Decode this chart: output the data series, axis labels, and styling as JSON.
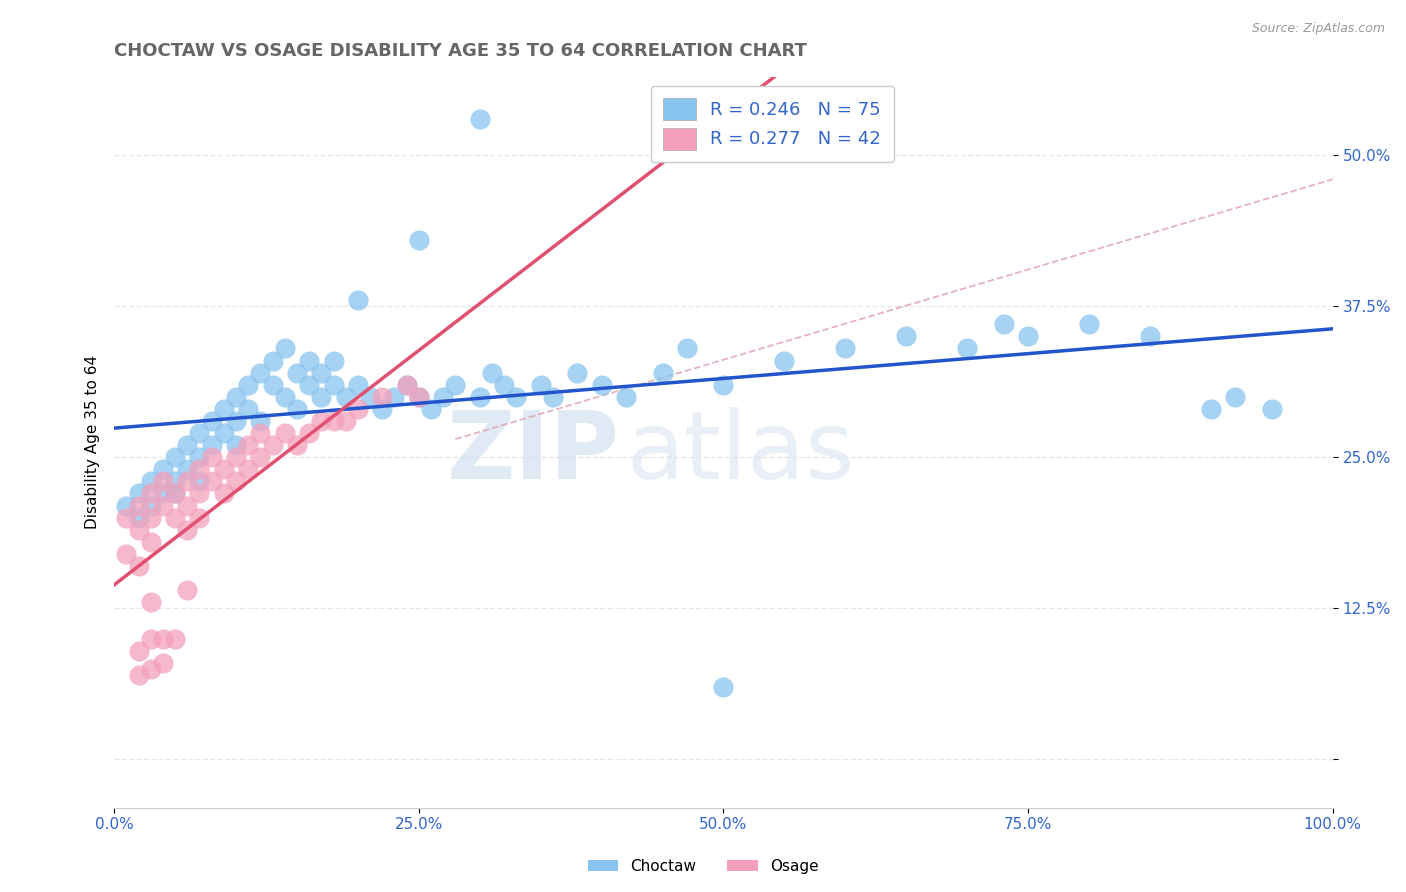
{
  "title": "CHOCTAW VS OSAGE DISABILITY AGE 35 TO 64 CORRELATION CHART",
  "source_text": "Source: ZipAtlas.com",
  "ylabel": "Disability Age 35 to 64",
  "xlim": [
    0.0,
    1.0
  ],
  "ylim": [
    -0.04,
    0.565
  ],
  "xticks": [
    0.0,
    0.25,
    0.5,
    0.75,
    1.0
  ],
  "xtick_labels": [
    "0.0%",
    "25.0%",
    "50.0%",
    "75.0%",
    "100.0%"
  ],
  "ytick_vals": [
    0.0,
    0.125,
    0.25,
    0.375,
    0.5
  ],
  "ytick_labels": [
    "",
    "12.5%",
    "25.0%",
    "37.5%",
    "50.0%"
  ],
  "choctaw_R": 0.246,
  "choctaw_N": 75,
  "osage_R": 0.277,
  "osage_N": 42,
  "choctaw_color": "#88c4f0",
  "osage_color": "#f4a0ba",
  "choctaw_line_color": "#2255cc",
  "osage_line_color": "#e05070",
  "dashed_line_color": "#e0a0b0",
  "grid_color": "#e8e8e8",
  "background_color": "#ffffff",
  "tick_color": "#3366cc",
  "title_color": "#666666",
  "title_fontsize": 13,
  "label_fontsize": 11,
  "tick_fontsize": 11,
  "legend_fontsize": 13,
  "choctaw_x": [
    0.01,
    0.02,
    0.02,
    0.03,
    0.03,
    0.04,
    0.04,
    0.05,
    0.05,
    0.05,
    0.06,
    0.06,
    0.07,
    0.07,
    0.07,
    0.08,
    0.08,
    0.09,
    0.09,
    0.1,
    0.1,
    0.1,
    0.11,
    0.11,
    0.12,
    0.12,
    0.13,
    0.13,
    0.14,
    0.14,
    0.15,
    0.15,
    0.16,
    0.16,
    0.17,
    0.17,
    0.18,
    0.18,
    0.19,
    0.2,
    0.21,
    0.22,
    0.23,
    0.24,
    0.25,
    0.26,
    0.27,
    0.28,
    0.3,
    0.31,
    0.32,
    0.33,
    0.35,
    0.36,
    0.38,
    0.4,
    0.42,
    0.45,
    0.47,
    0.5,
    0.55,
    0.6,
    0.65,
    0.7,
    0.73,
    0.75,
    0.8,
    0.85,
    0.9,
    0.92,
    0.95,
    0.3,
    0.25,
    0.2,
    0.5
  ],
  "choctaw_y": [
    0.21,
    0.22,
    0.2,
    0.23,
    0.21,
    0.22,
    0.24,
    0.23,
    0.25,
    0.22,
    0.24,
    0.26,
    0.25,
    0.27,
    0.23,
    0.26,
    0.28,
    0.27,
    0.29,
    0.28,
    0.3,
    0.26,
    0.29,
    0.31,
    0.28,
    0.32,
    0.31,
    0.33,
    0.3,
    0.34,
    0.29,
    0.32,
    0.31,
    0.33,
    0.3,
    0.32,
    0.31,
    0.33,
    0.3,
    0.31,
    0.3,
    0.29,
    0.3,
    0.31,
    0.3,
    0.29,
    0.3,
    0.31,
    0.3,
    0.32,
    0.31,
    0.3,
    0.31,
    0.3,
    0.32,
    0.31,
    0.3,
    0.32,
    0.34,
    0.31,
    0.33,
    0.34,
    0.35,
    0.34,
    0.36,
    0.35,
    0.36,
    0.35,
    0.29,
    0.3,
    0.29,
    0.53,
    0.43,
    0.38,
    0.06
  ],
  "osage_x": [
    0.01,
    0.01,
    0.02,
    0.02,
    0.02,
    0.03,
    0.03,
    0.03,
    0.04,
    0.04,
    0.05,
    0.05,
    0.06,
    0.06,
    0.06,
    0.07,
    0.07,
    0.07,
    0.08,
    0.08,
    0.09,
    0.09,
    0.1,
    0.1,
    0.11,
    0.11,
    0.12,
    0.12,
    0.13,
    0.14,
    0.15,
    0.16,
    0.17,
    0.18,
    0.19,
    0.2,
    0.22,
    0.24,
    0.25,
    0.03,
    0.04,
    0.06
  ],
  "osage_y": [
    0.2,
    0.17,
    0.19,
    0.21,
    0.16,
    0.2,
    0.22,
    0.18,
    0.21,
    0.23,
    0.2,
    0.22,
    0.21,
    0.23,
    0.19,
    0.22,
    0.24,
    0.2,
    0.23,
    0.25,
    0.22,
    0.24,
    0.23,
    0.25,
    0.24,
    0.26,
    0.25,
    0.27,
    0.26,
    0.27,
    0.26,
    0.27,
    0.28,
    0.28,
    0.28,
    0.29,
    0.3,
    0.31,
    0.3,
    0.13,
    0.1,
    0.14
  ],
  "osage_low_x": [
    0.02,
    0.03,
    0.04,
    0.05,
    0.02,
    0.03
  ],
  "osage_low_y": [
    0.09,
    0.1,
    0.08,
    0.1,
    0.07,
    0.075
  ]
}
